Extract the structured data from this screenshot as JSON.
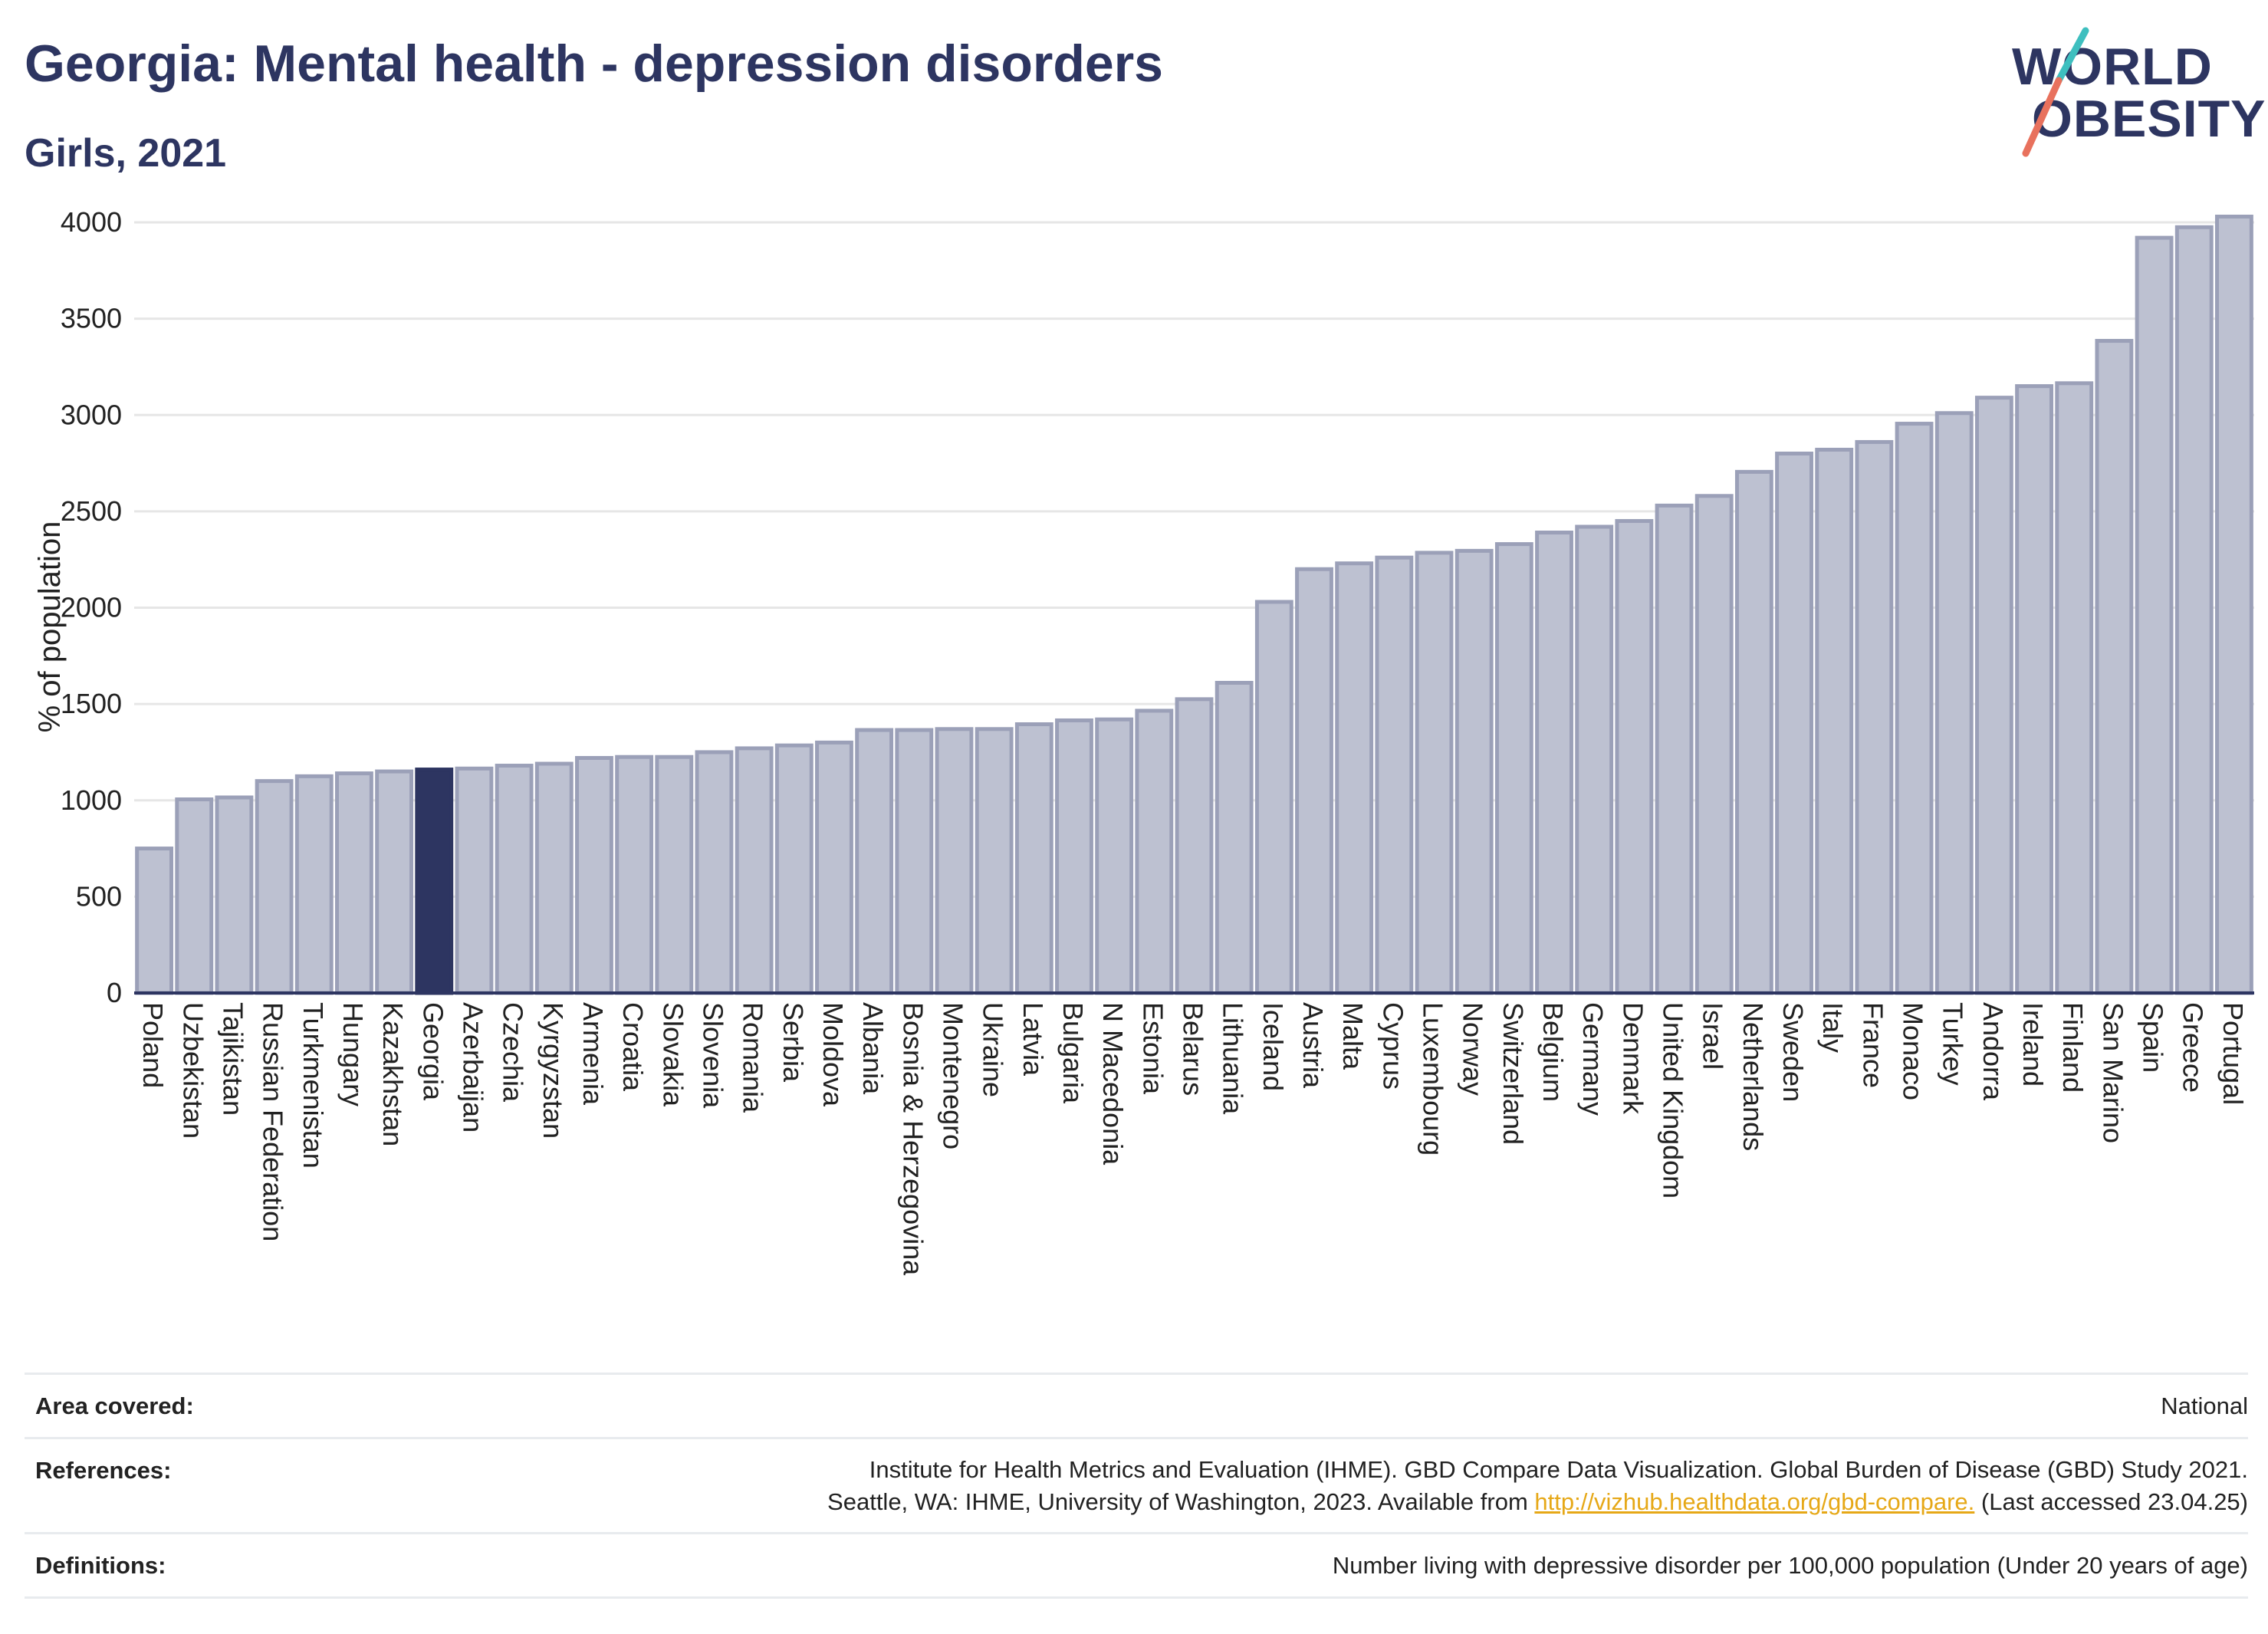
{
  "header": {
    "title": "Georgia: Mental health - depression disorders",
    "subtitle": "Girls, 2021"
  },
  "logo": {
    "line1": "WORLD",
    "line2": "OBESITY",
    "colors": {
      "navy": "#2d3561",
      "teal": "#3ebfbf",
      "coral": "#e8715d"
    }
  },
  "colors": {
    "bar": "#bdc1d1",
    "bar_border": "#9ba0b8",
    "highlight": "#2d3561",
    "grid": "#e6e6e6",
    "axis": "#2d3561",
    "link": "#e6a817"
  },
  "chart_data": {
    "type": "bar",
    "ylabel": "% of population",
    "ylim": [
      0,
      4000
    ],
    "yticks": [
      0,
      500,
      1000,
      1500,
      2000,
      2500,
      3000,
      3500,
      4000
    ],
    "highlight": "Georgia",
    "grid": true,
    "categories": [
      "Poland",
      "Uzbekistan",
      "Tajikistan",
      "Russian Federation",
      "Turkmenistan",
      "Hungary",
      "Kazakhstan",
      "Georgia",
      "Azerbaijan",
      "Czechia",
      "Kyrgyzstan",
      "Armenia",
      "Croatia",
      "Slovakia",
      "Slovenia",
      "Romania",
      "Serbia",
      "Moldova",
      "Albania",
      "Bosnia & Herzegovina",
      "Montenegro",
      "Ukraine",
      "Latvia",
      "Bulgaria",
      "N Macedonia",
      "Estonia",
      "Belarus",
      "Lithuania",
      "Iceland",
      "Austria",
      "Malta",
      "Cyprus",
      "Luxembourg",
      "Norway",
      "Switzerland",
      "Belgium",
      "Germany",
      "Denmark",
      "United Kingdom",
      "Israel",
      "Netherlands",
      "Sweden",
      "Italy",
      "France",
      "Monaco",
      "Turkey",
      "Andorra",
      "Ireland",
      "Finland",
      "San Marino",
      "Spain",
      "Greece",
      "Portugal"
    ],
    "values": [
      750,
      1005,
      1015,
      1100,
      1125,
      1140,
      1150,
      1160,
      1165,
      1180,
      1190,
      1220,
      1225,
      1225,
      1250,
      1270,
      1285,
      1300,
      1365,
      1365,
      1370,
      1370,
      1395,
      1415,
      1420,
      1465,
      1525,
      1610,
      2030,
      2200,
      2230,
      2260,
      2285,
      2295,
      2330,
      2390,
      2420,
      2450,
      2530,
      2580,
      2705,
      2800,
      2820,
      2860,
      2955,
      3010,
      3090,
      3150,
      3165,
      3385,
      3920,
      3975,
      4030
    ]
  },
  "info": {
    "area_label": "Area covered:",
    "area_value": "National",
    "references_label": "References:",
    "references_line1": "Institute for Health Metrics and Evaluation (IHME). GBD Compare Data Visualization. Global Burden of Disease (GBD) Study 2021.",
    "references_line2_pre": "Seattle, WA: IHME, University of Washington, 2023. Available from ",
    "references_link": "http://vizhub.healthdata.org/gbd-compare.",
    "references_line2_post": " (Last accessed 23.04.25)",
    "definitions_label": "Definitions:",
    "definitions_value": "Number living with depressive disorder per 100,000 population (Under 20 years of age)"
  }
}
